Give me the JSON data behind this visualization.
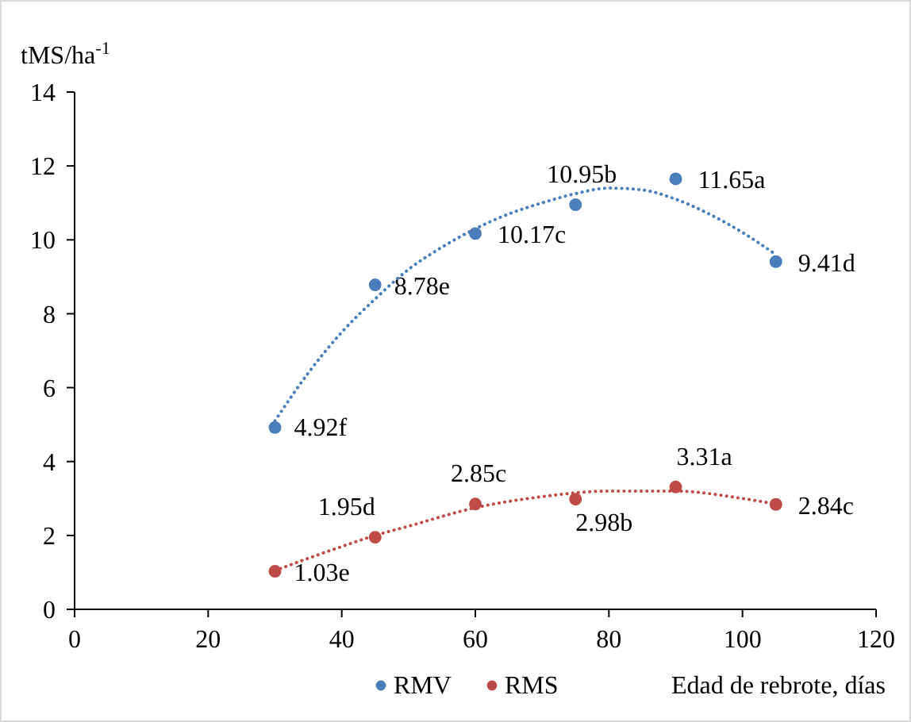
{
  "chart_data": {
    "type": "scatter",
    "ylabel": "tMS/ha$^{-1}$",
    "xlabel": "Edad de rebrote, días",
    "xlim": [
      0,
      120
    ],
    "xticks": [
      0,
      20,
      40,
      60,
      80,
      100,
      120
    ],
    "ylim": [
      0,
      14
    ],
    "yticks": [
      0,
      2,
      4,
      6,
      8,
      10,
      12,
      14
    ],
    "grid": false,
    "legend": "bottom",
    "marker": "circle",
    "series": [
      {
        "name": "RMV",
        "color": "#4a7ebb",
        "x": [
          30,
          45,
          60,
          75,
          90,
          105
        ],
        "values": [
          4.92,
          8.78,
          10.17,
          10.95,
          11.65,
          9.41
        ],
        "value_labels": [
          "4.92f",
          "8.78e",
          "10.17c",
          "10.95b",
          "11.65a",
          "9.41d"
        ]
      },
      {
        "name": "RMS",
        "color": "#be4b48",
        "x": [
          30,
          45,
          60,
          75,
          90,
          105
        ],
        "values": [
          1.03,
          1.95,
          2.85,
          2.98,
          3.31,
          2.84
        ],
        "value_labels": [
          "1.03e",
          "1.95d",
          "2.85c",
          "2.98b",
          "3.31a",
          "2.84c"
        ]
      },
      {
        "type": "line",
        "color": "#4a7ebb",
        "line_style": "dotted",
        "marker": "none",
        "x": [
          30,
          35,
          40,
          45,
          50,
          55,
          60,
          65,
          70,
          75,
          80,
          85,
          90,
          95,
          100,
          105
        ],
        "values": [
          5.1,
          6.4,
          7.5,
          8.4,
          9.2,
          9.8,
          10.3,
          10.7,
          11.0,
          11.25,
          11.4,
          11.35,
          11.1,
          10.7,
          10.2,
          9.6
        ]
      },
      {
        "type": "line",
        "color": "#be4b48",
        "line_style": "dotted",
        "marker": "none",
        "x": [
          30,
          40,
          45,
          50,
          60,
          70,
          80,
          90,
          100,
          105
        ],
        "values": [
          1.05,
          1.7,
          2.0,
          2.25,
          2.75,
          3.05,
          3.2,
          3.2,
          3.0,
          2.85
        ]
      }
    ]
  }
}
